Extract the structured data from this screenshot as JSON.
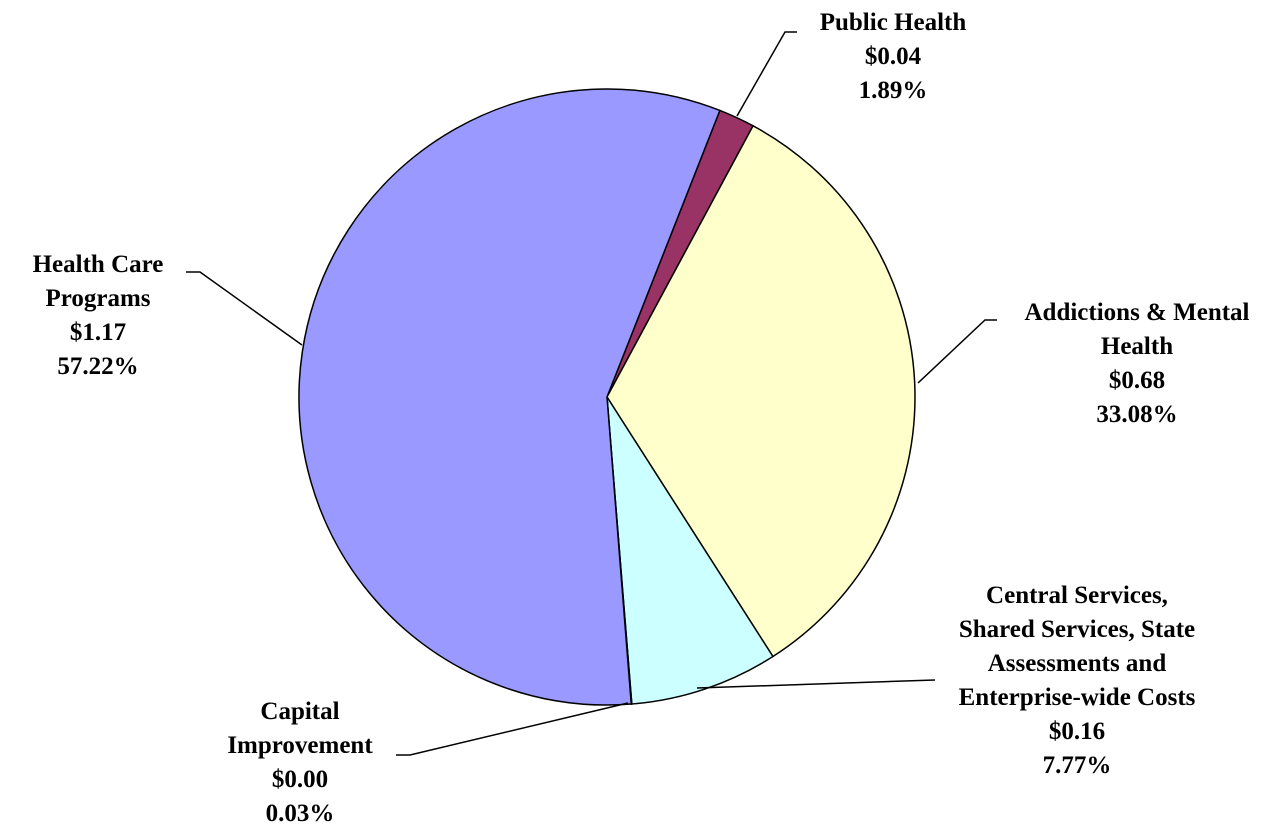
{
  "chart_data": {
    "type": "pie",
    "categories": [
      "Public Health",
      "Addictions & Mental Health",
      "Central Services, Shared Services, State Assessments and Enterprise-wide Costs",
      "Capital Improvement",
      "Health Care Programs"
    ],
    "values": [
      1.89,
      33.08,
      7.77,
      0.03,
      57.22
    ],
    "value_labels": [
      "1.89%",
      "33.08%",
      "7.77%",
      "0.03%",
      "57.22%"
    ],
    "amounts": [
      "$0.04",
      "$0.68",
      "$0.16",
      "$0.00",
      "$1.17"
    ],
    "colors": [
      "#993366",
      "#ffffcc",
      "#ccffff",
      "#660066",
      "#9999ff"
    ]
  }
}
